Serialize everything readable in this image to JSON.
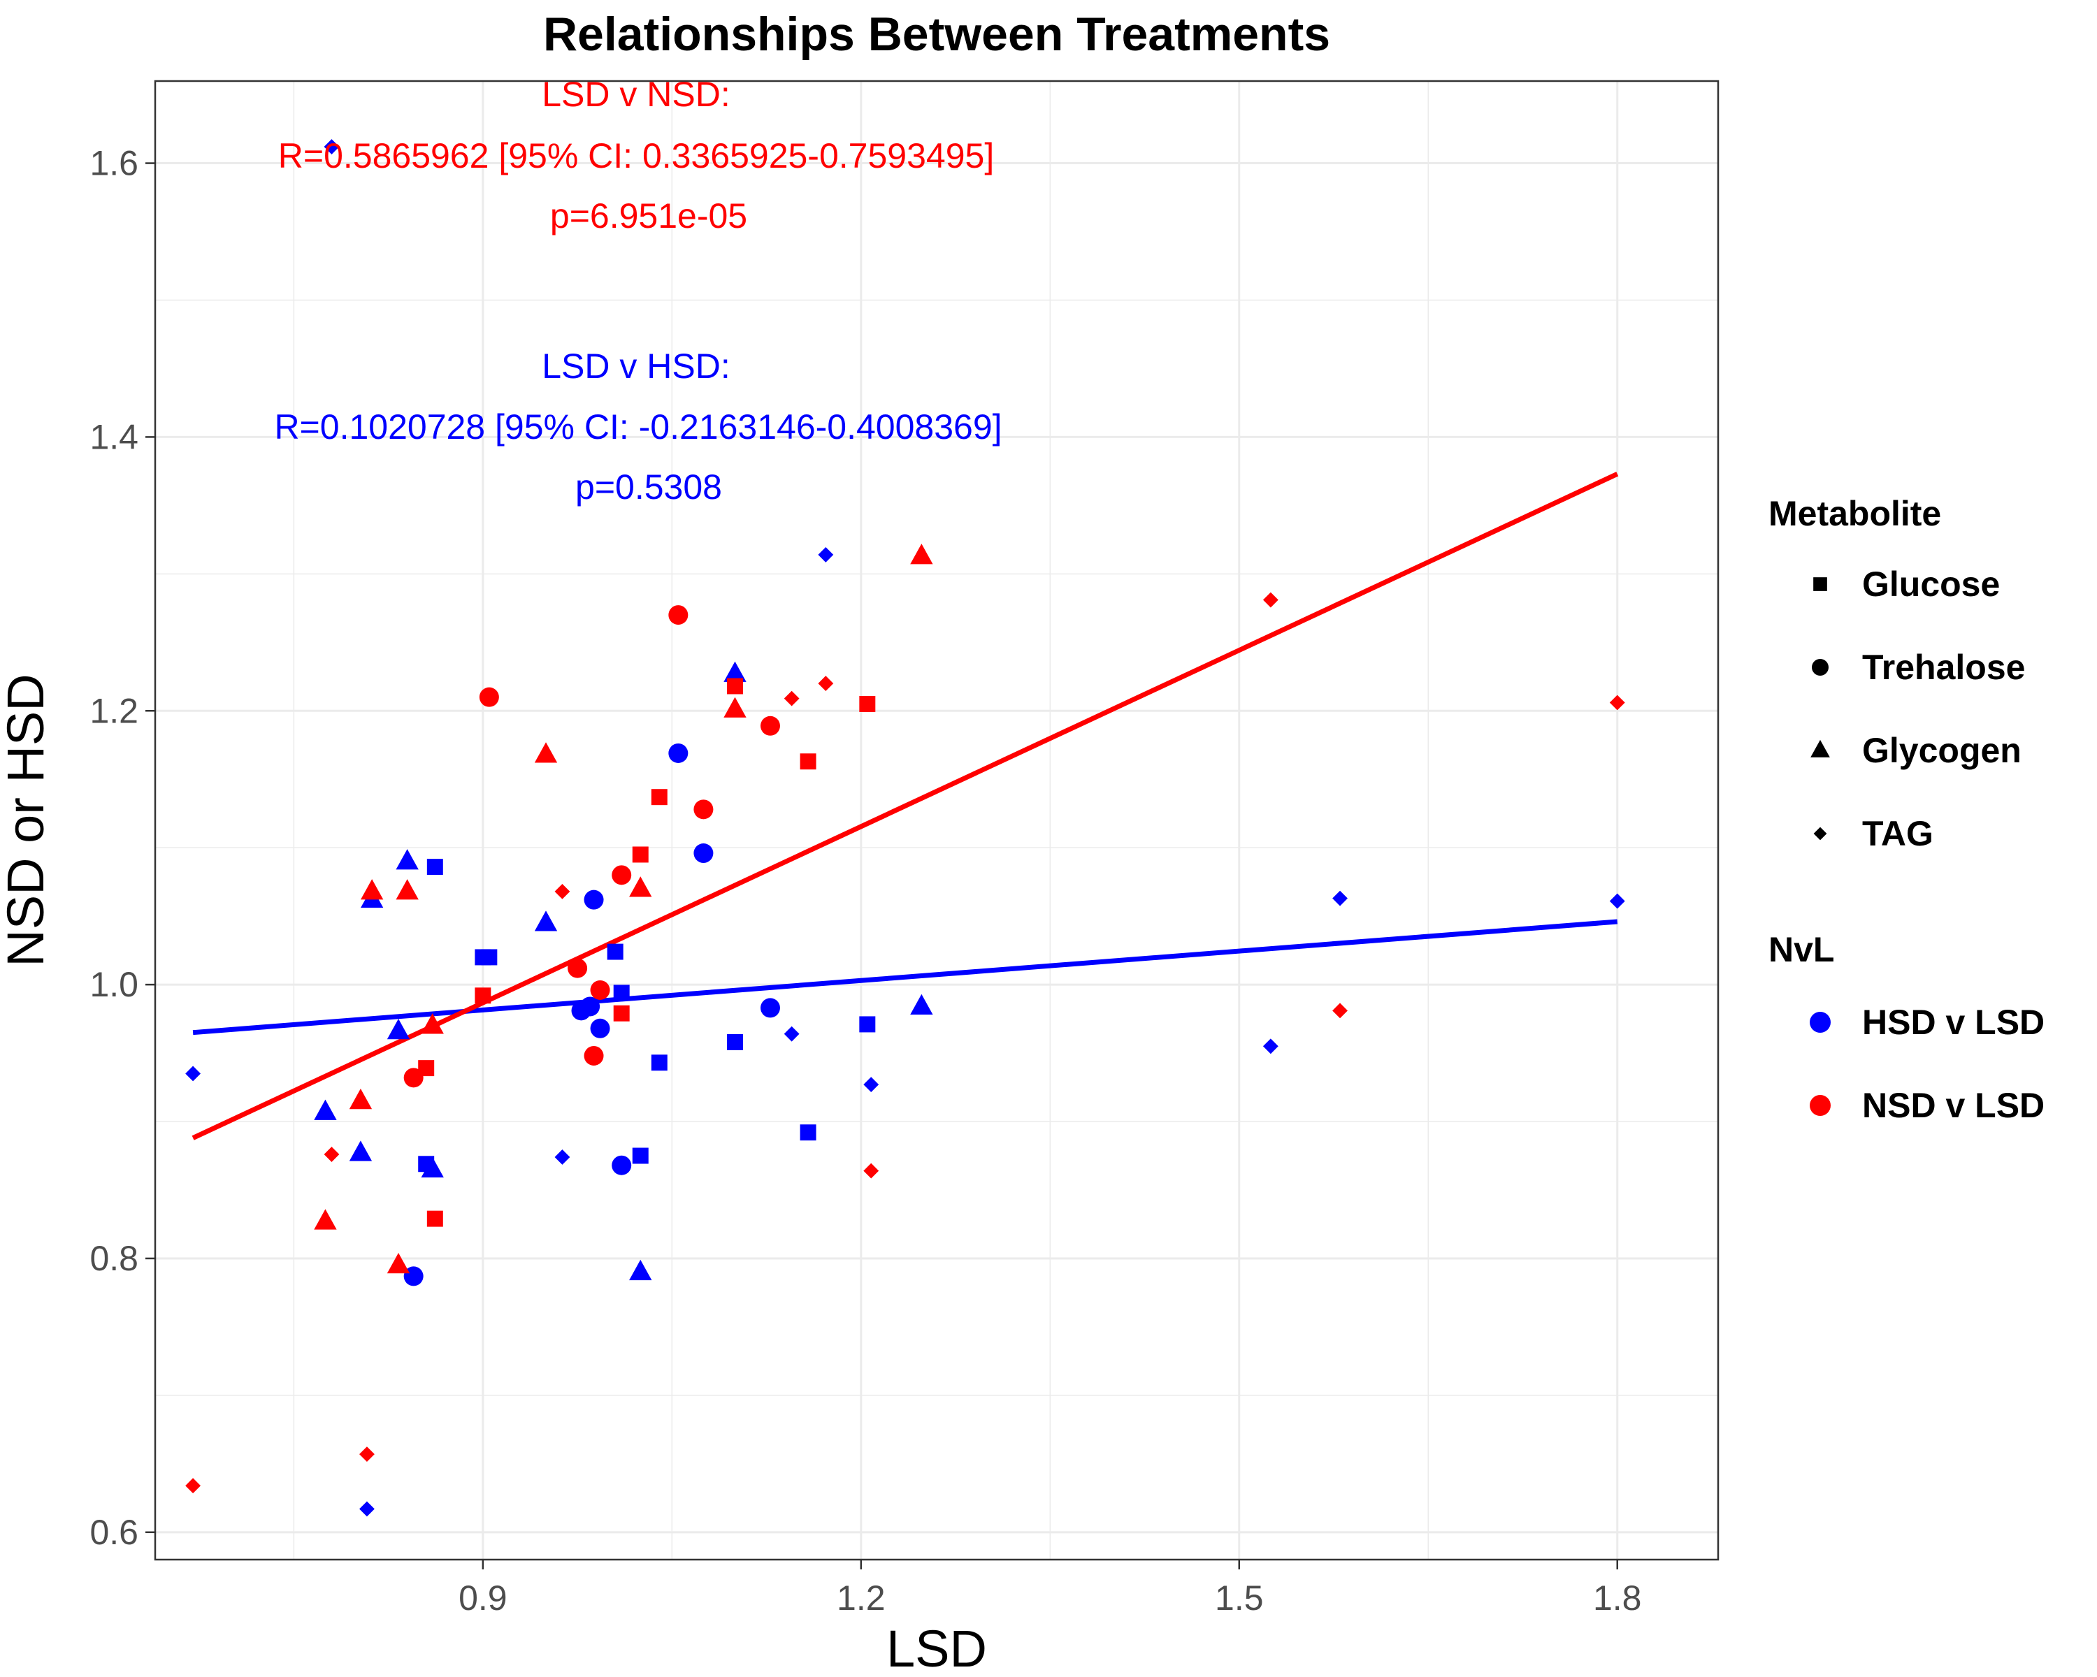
{
  "chart_data": {
    "type": "scatter",
    "title": "Relationships Between Treatments",
    "xlabel": "LSD",
    "ylabel": "NSD or HSD",
    "xlim": [
      0.64,
      1.88
    ],
    "ylim": [
      0.58,
      1.66
    ],
    "x_ticks": [
      0.9,
      1.2,
      1.5,
      1.8
    ],
    "x_tick_labels": [
      "0.9",
      "1.2",
      "1.5",
      "1.8"
    ],
    "y_ticks": [
      0.6,
      0.8,
      1.0,
      1.2,
      1.4,
      1.6
    ],
    "y_tick_labels": [
      "0.6",
      "0.8",
      "1.0",
      "1.2",
      "1.4",
      "1.6"
    ],
    "grid": true,
    "legend": {
      "placement": "right",
      "shape_title": "Metabolite",
      "color_title": "NvL",
      "shapes": [
        {
          "label": "Glucose",
          "shape": "square"
        },
        {
          "label": "Trehalose",
          "shape": "circle"
        },
        {
          "label": "Glycogen",
          "shape": "triangle"
        },
        {
          "label": "TAG",
          "shape": "diamond"
        }
      ],
      "colors": [
        {
          "label": "HSD v LSD",
          "color": "#0000ff"
        },
        {
          "label": "NSD v LSD",
          "color": "#ff0000"
        }
      ]
    },
    "annotations": [
      {
        "color": "#ff0000",
        "lines": [
          "LSD v NSD:",
          "R=0.5865962 [95% CI: 0.3365925-0.7593495]",
          "p=6.951e-05"
        ]
      },
      {
        "color": "#0000ff",
        "lines": [
          "LSD v HSD:",
          "R=0.1020728  [95% CI: -0.2163146-0.4008369]",
          "p=0.5308"
        ]
      }
    ],
    "series": [
      {
        "name": "HSD v LSD",
        "color": "#0000ff",
        "fit_line": {
          "x": [
            0.67,
            1.8
          ],
          "y": [
            0.965,
            1.046
          ]
        },
        "points": [
          {
            "shape": "square",
            "x": 0.862,
            "y": 1.086
          },
          {
            "shape": "square",
            "x": 0.9,
            "y": 1.02
          },
          {
            "shape": "square",
            "x": 0.905,
            "y": 1.02
          },
          {
            "shape": "square",
            "x": 0.855,
            "y": 0.869
          },
          {
            "shape": "square",
            "x": 1.005,
            "y": 1.024
          },
          {
            "shape": "square",
            "x": 1.01,
            "y": 0.994
          },
          {
            "shape": "square",
            "x": 1.04,
            "y": 0.943
          },
          {
            "shape": "square",
            "x": 1.025,
            "y": 0.875
          },
          {
            "shape": "square",
            "x": 1.1,
            "y": 0.958
          },
          {
            "shape": "square",
            "x": 1.158,
            "y": 0.892
          },
          {
            "shape": "square",
            "x": 1.205,
            "y": 0.971
          },
          {
            "shape": "circle",
            "x": 0.988,
            "y": 1.062
          },
          {
            "shape": "circle",
            "x": 0.985,
            "y": 0.984
          },
          {
            "shape": "circle",
            "x": 0.978,
            "y": 0.981
          },
          {
            "shape": "circle",
            "x": 0.993,
            "y": 0.968
          },
          {
            "shape": "circle",
            "x": 1.01,
            "y": 0.868
          },
          {
            "shape": "circle",
            "x": 0.845,
            "y": 0.787
          },
          {
            "shape": "circle",
            "x": 1.055,
            "y": 1.169
          },
          {
            "shape": "circle",
            "x": 1.075,
            "y": 1.096
          },
          {
            "shape": "circle",
            "x": 1.128,
            "y": 0.983
          },
          {
            "shape": "triangle",
            "x": 0.84,
            "y": 1.09
          },
          {
            "shape": "triangle",
            "x": 0.812,
            "y": 1.062
          },
          {
            "shape": "triangle",
            "x": 0.95,
            "y": 1.045
          },
          {
            "shape": "triangle",
            "x": 0.833,
            "y": 0.966
          },
          {
            "shape": "triangle",
            "x": 0.775,
            "y": 0.907
          },
          {
            "shape": "triangle",
            "x": 0.803,
            "y": 0.877
          },
          {
            "shape": "triangle",
            "x": 0.86,
            "y": 0.865
          },
          {
            "shape": "triangle",
            "x": 1.025,
            "y": 0.79
          },
          {
            "shape": "triangle",
            "x": 1.1,
            "y": 1.227
          },
          {
            "shape": "triangle",
            "x": 1.248,
            "y": 0.984
          },
          {
            "shape": "diamond",
            "x": 0.78,
            "y": 1.612
          },
          {
            "shape": "diamond",
            "x": 0.67,
            "y": 0.935
          },
          {
            "shape": "diamond",
            "x": 0.808,
            "y": 0.617
          },
          {
            "shape": "diamond",
            "x": 0.963,
            "y": 0.874
          },
          {
            "shape": "diamond",
            "x": 1.145,
            "y": 0.964
          },
          {
            "shape": "diamond",
            "x": 1.172,
            "y": 1.314
          },
          {
            "shape": "diamond",
            "x": 1.208,
            "y": 0.927
          },
          {
            "shape": "diamond",
            "x": 1.525,
            "y": 0.955
          },
          {
            "shape": "diamond",
            "x": 1.58,
            "y": 1.063
          },
          {
            "shape": "diamond",
            "x": 1.8,
            "y": 1.061
          }
        ]
      },
      {
        "name": "NSD v LSD",
        "color": "#ff0000",
        "fit_line": {
          "x": [
            0.67,
            1.8
          ],
          "y": [
            0.888,
            1.373
          ]
        },
        "points": [
          {
            "shape": "square",
            "x": 0.9,
            "y": 0.992
          },
          {
            "shape": "square",
            "x": 0.855,
            "y": 0.939
          },
          {
            "shape": "square",
            "x": 0.862,
            "y": 0.829
          },
          {
            "shape": "square",
            "x": 1.025,
            "y": 1.095
          },
          {
            "shape": "square",
            "x": 1.04,
            "y": 1.137
          },
          {
            "shape": "square",
            "x": 1.01,
            "y": 0.979
          },
          {
            "shape": "square",
            "x": 1.1,
            "y": 1.218
          },
          {
            "shape": "square",
            "x": 1.158,
            "y": 1.163
          },
          {
            "shape": "square",
            "x": 1.205,
            "y": 1.205
          },
          {
            "shape": "circle",
            "x": 0.905,
            "y": 1.21
          },
          {
            "shape": "circle",
            "x": 0.975,
            "y": 1.012
          },
          {
            "shape": "circle",
            "x": 0.993,
            "y": 0.996
          },
          {
            "shape": "circle",
            "x": 0.988,
            "y": 0.948
          },
          {
            "shape": "circle",
            "x": 0.845,
            "y": 0.932
          },
          {
            "shape": "circle",
            "x": 1.01,
            "y": 1.08
          },
          {
            "shape": "circle",
            "x": 1.055,
            "y": 1.27
          },
          {
            "shape": "circle",
            "x": 1.075,
            "y": 1.128
          },
          {
            "shape": "circle",
            "x": 1.128,
            "y": 1.189
          },
          {
            "shape": "triangle",
            "x": 0.95,
            "y": 1.168
          },
          {
            "shape": "triangle",
            "x": 0.812,
            "y": 1.068
          },
          {
            "shape": "triangle",
            "x": 0.84,
            "y": 1.068
          },
          {
            "shape": "triangle",
            "x": 0.86,
            "y": 0.97
          },
          {
            "shape": "triangle",
            "x": 0.803,
            "y": 0.915
          },
          {
            "shape": "triangle",
            "x": 0.775,
            "y": 0.827
          },
          {
            "shape": "triangle",
            "x": 0.833,
            "y": 0.795
          },
          {
            "shape": "triangle",
            "x": 1.025,
            "y": 1.07
          },
          {
            "shape": "triangle",
            "x": 1.1,
            "y": 1.201
          },
          {
            "shape": "triangle",
            "x": 1.248,
            "y": 1.313
          },
          {
            "shape": "diamond",
            "x": 0.78,
            "y": 0.876
          },
          {
            "shape": "diamond",
            "x": 0.67,
            "y": 0.634
          },
          {
            "shape": "diamond",
            "x": 0.808,
            "y": 0.657
          },
          {
            "shape": "diamond",
            "x": 0.963,
            "y": 1.068
          },
          {
            "shape": "diamond",
            "x": 1.145,
            "y": 1.209
          },
          {
            "shape": "diamond",
            "x": 1.172,
            "y": 1.22
          },
          {
            "shape": "diamond",
            "x": 1.208,
            "y": 0.864
          },
          {
            "shape": "diamond",
            "x": 1.525,
            "y": 1.281
          },
          {
            "shape": "diamond",
            "x": 1.58,
            "y": 0.981
          },
          {
            "shape": "diamond",
            "x": 1.8,
            "y": 1.206
          }
        ]
      }
    ]
  }
}
